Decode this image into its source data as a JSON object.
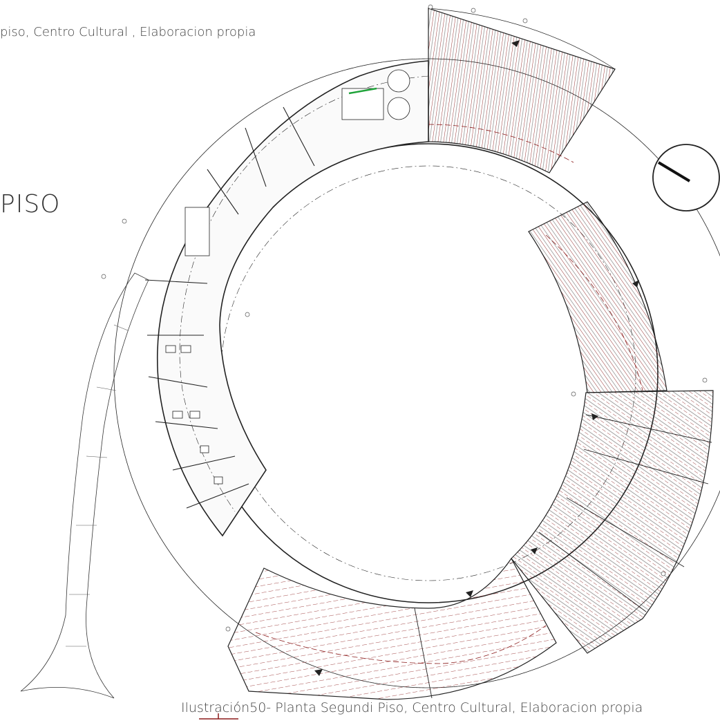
{
  "captions": {
    "top": "piso, Centro Cultural , Elaboracion propia",
    "floor_label": "PISO",
    "bottom": "Ilustración50- Planta Segundi Piso, Centro Cultural, Elaboracion propia"
  },
  "colors": {
    "roof_hatch": "#8b1a1a",
    "lines": "#222222",
    "green_detail": "#1fa33a"
  },
  "icons": [
    "north-arrow-icon",
    "roof-slope-arrow-icon"
  ]
}
